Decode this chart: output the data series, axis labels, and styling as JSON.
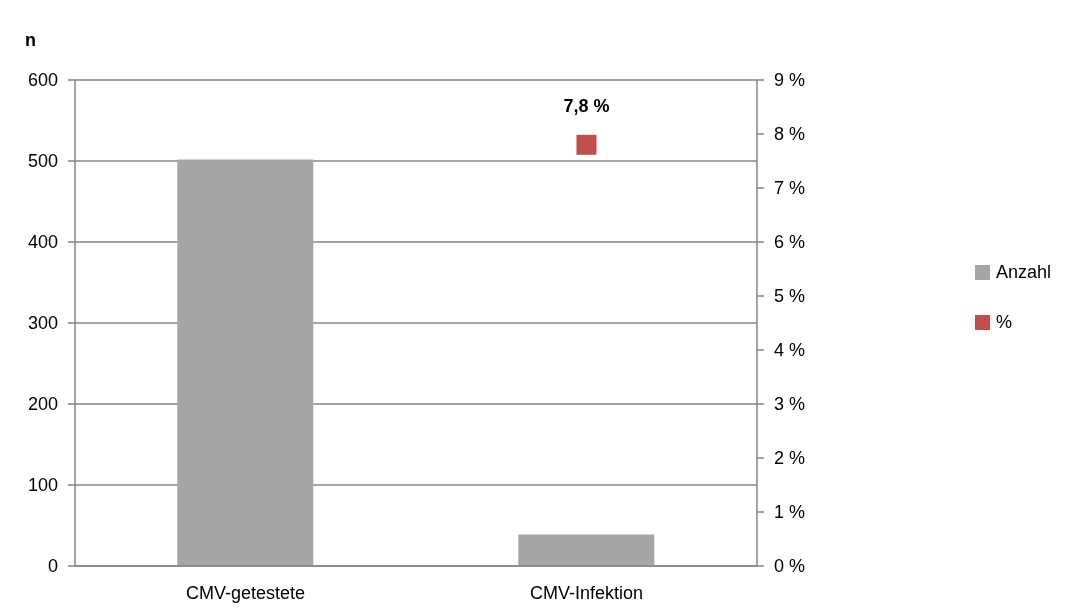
{
  "chart_data": {
    "type": "bar",
    "ylabel": "n",
    "categories": [
      "CMV-getestete",
      "CMV-Infektion"
    ],
    "series": [
      {
        "name": "Anzahl",
        "type": "bar",
        "color": "#a5a5a5",
        "values": [
          502,
          39
        ]
      },
      {
        "name": "%",
        "type": "scatter",
        "axis": "y2",
        "color": "#c0504d",
        "marker": "square",
        "values": [
          null,
          7.8
        ],
        "value_labels": [
          null,
          "7,8 %"
        ]
      }
    ],
    "ylim": [
      0,
      600
    ],
    "yticks": [
      0,
      100,
      200,
      300,
      400,
      500,
      600
    ],
    "y2lim": [
      0,
      9
    ],
    "y2ticks": [
      {
        "value": 0,
        "label": "0 %"
      },
      {
        "value": 1,
        "label": "1 %"
      },
      {
        "value": 2,
        "label": "2 %"
      },
      {
        "value": 3,
        "label": "3 %"
      },
      {
        "value": 4,
        "label": "4 %"
      },
      {
        "value": 5,
        "label": "5 %"
      },
      {
        "value": 6,
        "label": "6 %"
      },
      {
        "value": 7,
        "label": "7 %"
      },
      {
        "value": 8,
        "label": "8 %"
      },
      {
        "value": 9,
        "label": "9 %"
      }
    ],
    "grid": "y",
    "legend": "right"
  }
}
